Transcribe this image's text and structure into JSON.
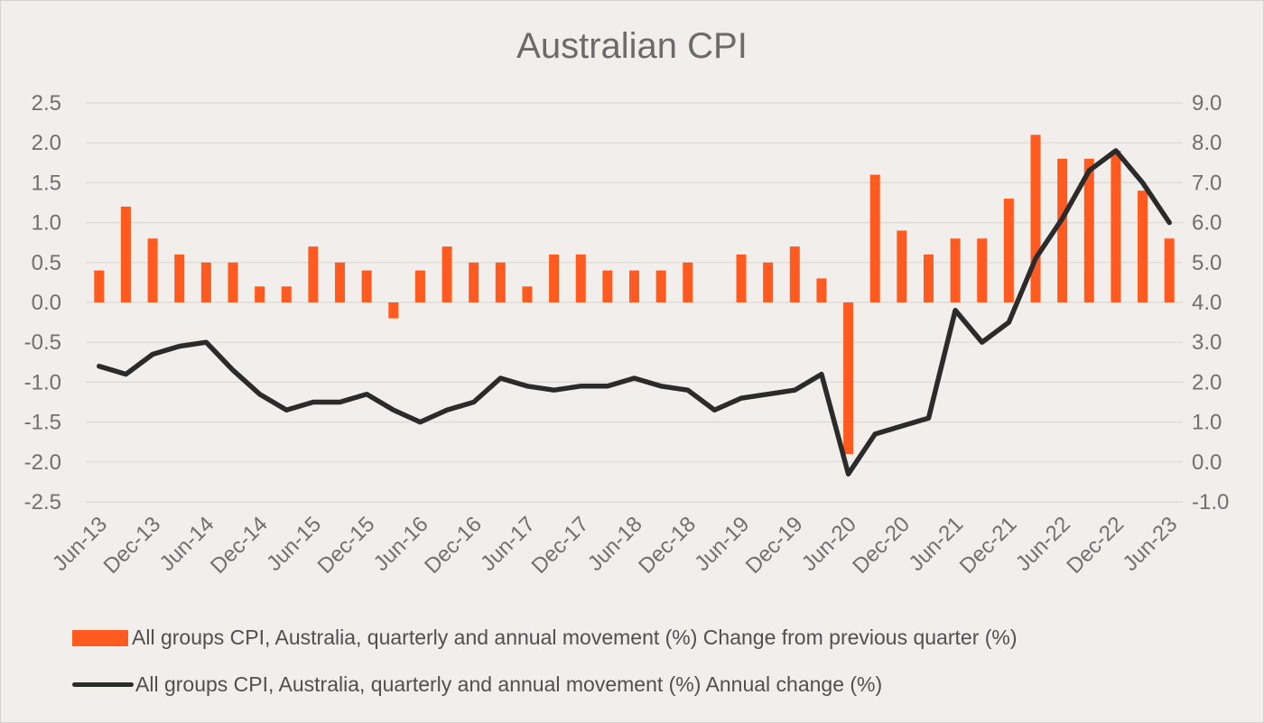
{
  "chart_data": {
    "type": "bar+line",
    "title": "Australian CPI",
    "categories": [
      "Jun-13",
      "Sep-13",
      "Dec-13",
      "Mar-14",
      "Jun-14",
      "Sep-14",
      "Dec-14",
      "Mar-15",
      "Jun-15",
      "Sep-15",
      "Dec-15",
      "Mar-16",
      "Jun-16",
      "Sep-16",
      "Dec-16",
      "Mar-17",
      "Jun-17",
      "Sep-17",
      "Dec-17",
      "Mar-18",
      "Jun-18",
      "Sep-18",
      "Dec-18",
      "Mar-19",
      "Jun-19",
      "Sep-19",
      "Dec-19",
      "Mar-20",
      "Jun-20",
      "Sep-20",
      "Dec-20",
      "Mar-21",
      "Jun-21",
      "Sep-21",
      "Dec-21",
      "Mar-22",
      "Jun-22",
      "Sep-22",
      "Dec-22",
      "Mar-23",
      "Jun-23"
    ],
    "x_tick_labels": [
      "Jun-13",
      "Dec-13",
      "Jun-14",
      "Dec-14",
      "Jun-15",
      "Dec-15",
      "Jun-16",
      "Dec-16",
      "Jun-17",
      "Dec-17",
      "Jun-18",
      "Dec-18",
      "Jun-19",
      "Dec-19",
      "Jun-20",
      "Dec-20",
      "Jun-21",
      "Dec-21",
      "Jun-22",
      "Dec-22",
      "Jun-23"
    ],
    "series": [
      {
        "name": "All groups CPI, Australia, quarterly and annual movement (%) Change from previous quarter (%)",
        "type": "bar",
        "axis": "left",
        "color": "#ff5a1f",
        "values": [
          0.4,
          1.2,
          0.8,
          0.6,
          0.5,
          0.5,
          0.2,
          0.2,
          0.7,
          0.5,
          0.4,
          -0.2,
          0.4,
          0.7,
          0.5,
          0.5,
          0.2,
          0.6,
          0.6,
          0.4,
          0.4,
          0.4,
          0.5,
          0.0,
          0.6,
          0.5,
          0.7,
          0.3,
          -1.9,
          1.6,
          0.9,
          0.6,
          0.8,
          0.8,
          1.3,
          2.1,
          1.8,
          1.8,
          1.9,
          1.4,
          0.8
        ]
      },
      {
        "name": "All groups CPI, Australia, quarterly and annual movement (%) Annual change (%)",
        "type": "line",
        "axis": "right",
        "color": "#2b2b2b",
        "values": [
          2.4,
          2.2,
          2.7,
          2.9,
          3.0,
          2.3,
          1.7,
          1.3,
          1.5,
          1.5,
          1.7,
          1.3,
          1.0,
          1.3,
          1.5,
          2.1,
          1.9,
          1.8,
          1.9,
          1.9,
          2.1,
          1.9,
          1.8,
          1.3,
          1.6,
          1.7,
          1.8,
          2.2,
          -0.3,
          0.7,
          0.9,
          1.1,
          3.8,
          3.0,
          3.5,
          5.1,
          6.1,
          7.3,
          7.8,
          7.0,
          6.0
        ]
      }
    ],
    "y_left": {
      "min": -2.5,
      "max": 2.5,
      "step": 0.5,
      "ticks": [
        "2.5",
        "2.0",
        "1.5",
        "1.0",
        "0.5",
        "0.0",
        "-0.5",
        "-1.0",
        "-1.5",
        "-2.0",
        "-2.5"
      ]
    },
    "y_right": {
      "min": -1.0,
      "max": 9.0,
      "step": 1.0,
      "ticks": [
        "9.0",
        "8.0",
        "7.0",
        "6.0",
        "5.0",
        "4.0",
        "3.0",
        "2.0",
        "1.0",
        "0.0",
        "-1.0"
      ]
    },
    "grid": true,
    "legend_position": "bottom"
  }
}
